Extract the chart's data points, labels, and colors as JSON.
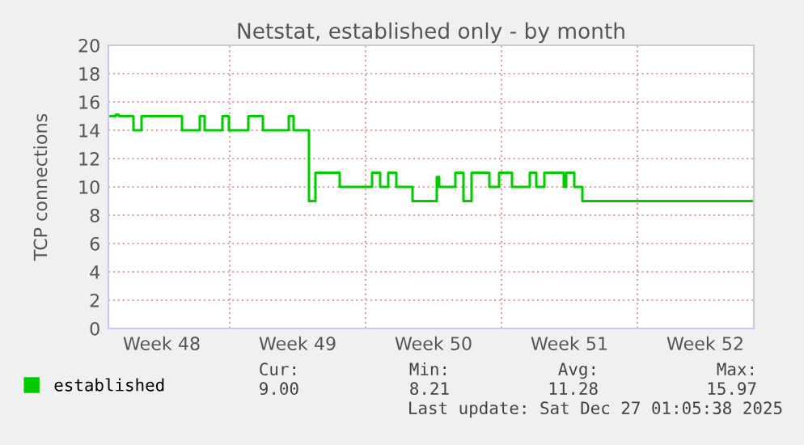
{
  "chart_data": {
    "type": "step",
    "title": "Netstat, established only - by month",
    "ylabel": "TCP connections",
    "x": [
      "2025-11-24T18:00",
      "2025-11-25T03:00",
      "2025-11-25T07:00",
      "2025-11-25T23:00",
      "2025-11-26T01:00",
      "2025-11-26T09:00",
      "2025-11-26T11:00",
      "2025-11-28T09:00",
      "2025-11-28T13:00",
      "2025-11-29T05:00",
      "2025-11-29T11:00",
      "2025-11-29T17:00",
      "2025-11-30T10:00",
      "2025-11-30T15:00",
      "2025-11-30T23:00",
      "2025-12-01T17:00",
      "2025-12-01T23:00",
      "2025-12-02T13:00",
      "2025-12-02T17:00",
      "2025-12-03T19:00",
      "2025-12-04T01:00",
      "2025-12-04T07:00",
      "2025-12-04T23:00",
      "2025-12-05T01:00",
      "2025-12-05T02:00",
      "2025-12-05T05:00",
      "2025-12-05T10:00",
      "2025-12-06T13:00",
      "2025-12-06T16:00",
      "2025-12-08T05:00",
      "2025-12-08T08:00",
      "2025-12-08T15:00",
      "2025-12-08T18:00",
      "2025-12-09T01:00",
      "2025-12-09T04:00",
      "2025-12-09T09:00",
      "2025-12-09T14:00",
      "2025-12-10T07:00",
      "2025-12-10T10:00",
      "2025-12-11T15:00",
      "2025-12-11T16:00",
      "2025-12-11T19:00",
      "2025-12-12T12:00",
      "2025-12-12T15:00",
      "2025-12-12T22:00",
      "2025-12-13T01:00",
      "2025-12-13T07:00",
      "2025-12-13T11:00",
      "2025-12-14T07:00",
      "2025-12-14T09:00",
      "2025-12-14T16:00",
      "2025-12-14T21:00",
      "2025-12-15T10:00",
      "2025-12-15T13:00",
      "2025-12-16T06:00",
      "2025-12-16T11:00",
      "2025-12-16T16:00",
      "2025-12-16T19:00",
      "2025-12-17T02:00",
      "2025-12-17T05:00",
      "2025-12-18T01:00",
      "2025-12-18T05:00",
      "2025-12-18T08:00",
      "2025-12-18T15:00",
      "2025-12-18T18:00",
      "2025-12-19T01:00",
      "2025-12-19T04:00",
      "2025-12-27T22:00"
    ],
    "series": [
      {
        "name": "established",
        "color": "#00cc00",
        "values": [
          15,
          15.1,
          15,
          15,
          14,
          14,
          15,
          15,
          14,
          14,
          15,
          14,
          14,
          15,
          14,
          14,
          15,
          15,
          14,
          14,
          15,
          14,
          14,
          14,
          9,
          9,
          11,
          11,
          10,
          10,
          11,
          11,
          10,
          10,
          11,
          11,
          10,
          10,
          9,
          9,
          10.7,
          10,
          10,
          11,
          11,
          9,
          9,
          11,
          11,
          10,
          10,
          11,
          11,
          10,
          10,
          11,
          11,
          10,
          10,
          11,
          11,
          10,
          11,
          11,
          10,
          10,
          9,
          9
        ]
      }
    ],
    "xlim": [
      "2025-11-24T18:00",
      "2025-12-28T00:00"
    ],
    "xticks": [
      {
        "value": "2025-11-27T12:00",
        "label": "Week 48"
      },
      {
        "value": "2025-12-01",
        "label": null
      },
      {
        "value": "2025-12-04T12:00",
        "label": "Week 49"
      },
      {
        "value": "2025-12-08",
        "label": null
      },
      {
        "value": "2025-12-11T12:00",
        "label": "Week 50"
      },
      {
        "value": "2025-12-15",
        "label": null
      },
      {
        "value": "2025-12-18T12:00",
        "label": "Week 51"
      },
      {
        "value": "2025-12-22",
        "label": null
      },
      {
        "value": "2025-12-25T12:00",
        "label": "Week 52"
      }
    ],
    "ylim": [
      0,
      20
    ],
    "yticks": [
      0,
      2,
      4,
      6,
      8,
      10,
      12,
      14,
      16,
      18,
      20
    ],
    "grid": true,
    "legend": "bottom",
    "marker": "none",
    "line_style": "solid",
    "annotations": [
      "Cur:",
      "9.00",
      "Min:",
      "8.21",
      "Avg:",
      "11.28",
      "Max:",
      "15.97",
      "Last update: Sat Dec 27 01:05:38 2025"
    ]
  }
}
